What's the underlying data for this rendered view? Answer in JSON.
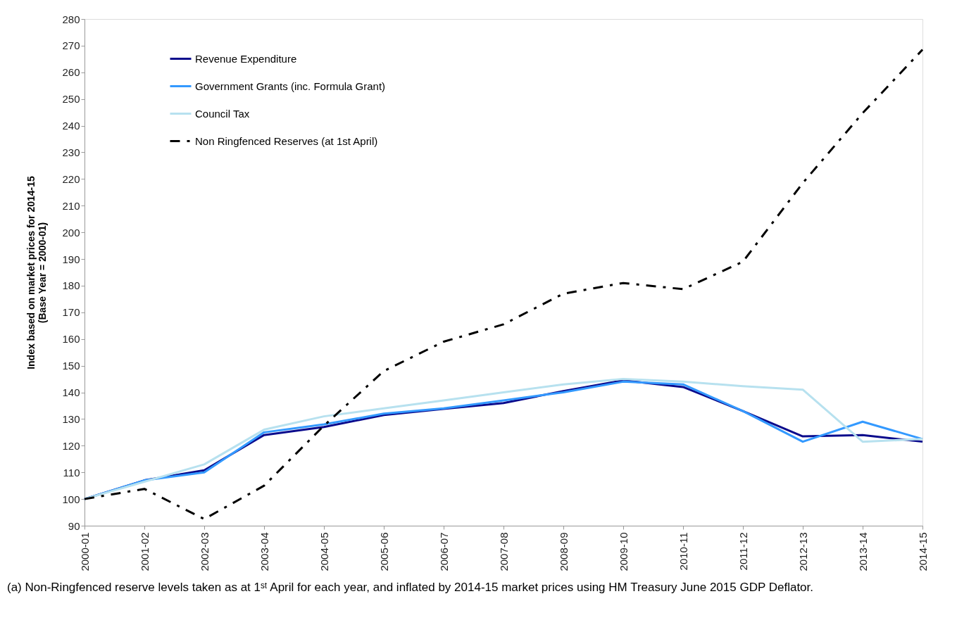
{
  "chart_data": {
    "type": "line",
    "categories": [
      "2000-01",
      "2001-02",
      "2002-03",
      "2003-04",
      "2004-05",
      "2005-06",
      "2006-07",
      "2007-08",
      "2008-09",
      "2009-10",
      "2010-11",
      "2011-12",
      "2012-13",
      "2013-14",
      "2014-15"
    ],
    "ylabel": "Index based on market prices for 2014-15\n(Base Year = 2000-01)",
    "ylim": [
      90,
      280
    ],
    "yticks": [
      90,
      100,
      110,
      120,
      130,
      140,
      150,
      160,
      170,
      180,
      190,
      200,
      210,
      220,
      230,
      240,
      250,
      260,
      270,
      280
    ],
    "grid": false,
    "legend": "top left",
    "marker": "none",
    "series": [
      {
        "name": "Revenue Expenditure",
        "color": "#0a0a8c",
        "line_style": "solid",
        "values": [
          100,
          107,
          110.8,
          124,
          127,
          131.5,
          133.8,
          136,
          140.5,
          144.5,
          142,
          133,
          123.5,
          124,
          121.5
        ]
      },
      {
        "name": "Government Grants (inc. Formula Grant)",
        "color": "#3399ff",
        "line_style": "solid",
        "values": [
          100,
          107,
          110,
          125,
          128,
          132,
          134,
          137,
          140,
          144,
          143,
          133,
          121.5,
          129,
          122.5
        ]
      },
      {
        "name": "Council Tax",
        "color": "#b7e1ef",
        "line_style": "solid",
        "values": [
          100,
          106.5,
          113,
          126,
          131,
          134,
          137,
          140,
          143,
          145,
          144,
          142.3,
          141,
          121.5,
          122.5
        ]
      },
      {
        "name": "Non Ringfenced Reserves (at 1st April)",
        "color": "#000000",
        "line_style": "dashed",
        "values": [
          100,
          103.8,
          92.5,
          105,
          127.5,
          148,
          159,
          165.5,
          177,
          181,
          178.7,
          189,
          218.5,
          244.7,
          268.5
        ]
      }
    ],
    "annotations": [
      "(a) Non-Ringfenced reserve levels taken as at 1ˢᵗ April for each year, and inflated by 2014-15 market prices using HM Treasury June 2015 GDP Deflator."
    ]
  }
}
